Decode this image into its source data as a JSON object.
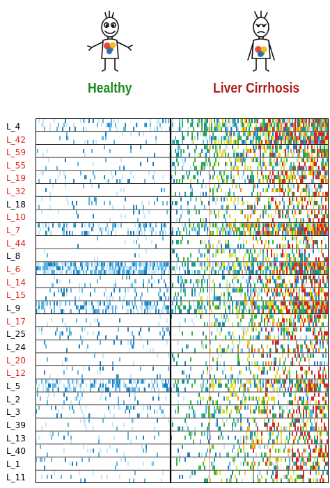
{
  "groups": {
    "healthy": {
      "label": "Healthy",
      "color": "#1b8a1b"
    },
    "cirrhosis": {
      "label": "Liver Cirrhosis",
      "color": "#b01c1c"
    }
  },
  "rows": [
    {
      "label": "L_4",
      "color": "#000000"
    },
    {
      "label": "L_42",
      "color": "#e2231a"
    },
    {
      "label": "L_59",
      "color": "#e2231a"
    },
    {
      "label": "L_55",
      "color": "#e2231a"
    },
    {
      "label": "L_19",
      "color": "#e2231a"
    },
    {
      "label": "L_32",
      "color": "#e2231a"
    },
    {
      "label": "L_18",
      "color": "#000000"
    },
    {
      "label": "L_10",
      "color": "#e2231a"
    },
    {
      "label": "L_7",
      "color": "#e2231a"
    },
    {
      "label": "L_44",
      "color": "#e2231a"
    },
    {
      "label": "L_8",
      "color": "#000000"
    },
    {
      "label": "L_6",
      "color": "#e2231a"
    },
    {
      "label": "L_14",
      "color": "#e2231a"
    },
    {
      "label": "L_15",
      "color": "#e2231a"
    },
    {
      "label": "L_9",
      "color": "#000000"
    },
    {
      "label": "L_17",
      "color": "#e2231a"
    },
    {
      "label": "L_25",
      "color": "#000000"
    },
    {
      "label": "L_24",
      "color": "#000000"
    },
    {
      "label": "L_20",
      "color": "#e2231a"
    },
    {
      "label": "L_12",
      "color": "#e2231a"
    },
    {
      "label": "L_5",
      "color": "#000000"
    },
    {
      "label": "L_2",
      "color": "#000000"
    },
    {
      "label": "L_3",
      "color": "#000000"
    },
    {
      "label": "L_39",
      "color": "#000000"
    },
    {
      "label": "L_13",
      "color": "#000000"
    },
    {
      "label": "L_40",
      "color": "#000000"
    },
    {
      "label": "L_1",
      "color": "#000000"
    },
    {
      "label": "L_11",
      "color": "#000000"
    }
  ],
  "palette": [
    "#ffffff",
    "#c6e6f7",
    "#5ab4e5",
    "#1a7fc1",
    "#1aa37a",
    "#3cb83c",
    "#d6e832",
    "#f3d21a",
    "#f08a18",
    "#d8261b"
  ]
}
